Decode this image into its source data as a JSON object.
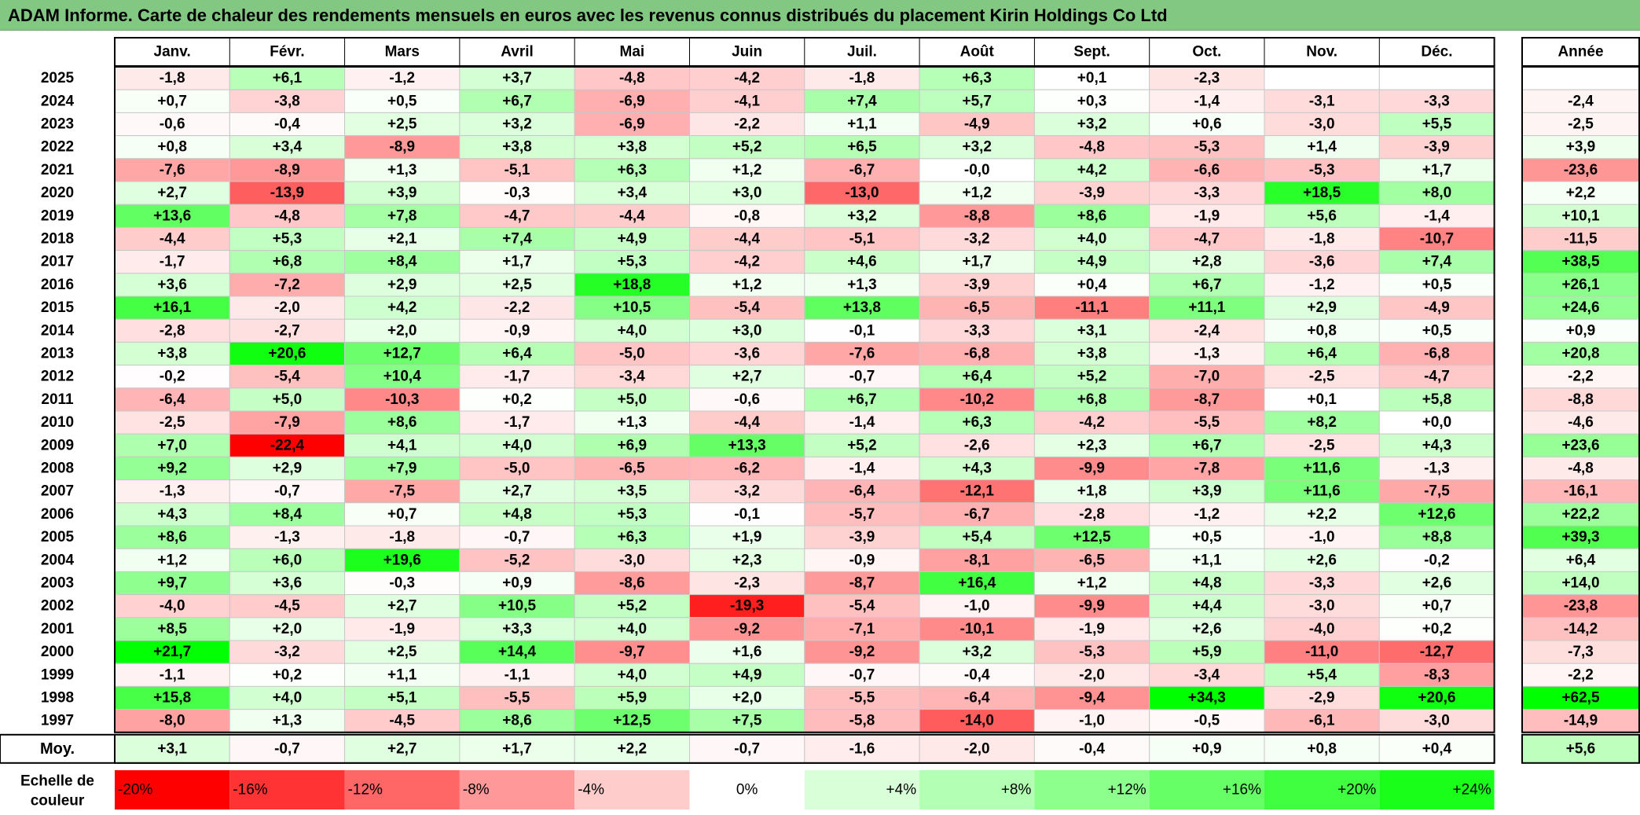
{
  "title": "ADAM Informe. Carte de chaleur des rendements mensuels en euros avec les revenus connus distribués du placement Kirin Holdings Co Ltd",
  "chart_data": {
    "type": "heatmap",
    "title": "ADAM Informe. Carte de chaleur des rendements mensuels en euros avec les revenus connus distribués du placement Kirin Holdings Co Ltd",
    "months": [
      "Janv.",
      "Févr.",
      "Mars",
      "Avril",
      "Mai",
      "Juin",
      "Juil.",
      "Août",
      "Sept.",
      "Oct.",
      "Nov.",
      "Déc."
    ],
    "annual_header": "Année",
    "rows": [
      {
        "year": "2025",
        "values": [
          "-1,8",
          "+6,1",
          "-1,2",
          "+3,7",
          "-4,8",
          "-4,2",
          "-1,8",
          "+6,3",
          "+0,1",
          "-2,3",
          "",
          ""
        ],
        "annual": ""
      },
      {
        "year": "2024",
        "values": [
          "+0,7",
          "-3,8",
          "+0,5",
          "+6,7",
          "-6,9",
          "-4,1",
          "+7,4",
          "+5,7",
          "+0,3",
          "-1,4",
          "-3,1",
          "-3,3"
        ],
        "annual": "-2,4"
      },
      {
        "year": "2023",
        "values": [
          "-0,6",
          "-0,4",
          "+2,5",
          "+3,2",
          "-6,9",
          "-2,2",
          "+1,1",
          "-4,9",
          "+3,2",
          "+0,6",
          "-3,0",
          "+5,5"
        ],
        "annual": "-2,5"
      },
      {
        "year": "2022",
        "values": [
          "+0,8",
          "+3,4",
          "-8,9",
          "+3,8",
          "+3,8",
          "+5,2",
          "+6,5",
          "+3,2",
          "-4,8",
          "-5,3",
          "+1,4",
          "-3,9"
        ],
        "annual": "+3,9"
      },
      {
        "year": "2021",
        "values": [
          "-7,6",
          "-8,9",
          "+1,3",
          "-5,1",
          "+6,3",
          "+1,2",
          "-6,7",
          "-0,0",
          "+4,2",
          "-6,6",
          "-5,3",
          "+1,7"
        ],
        "annual": "-23,6"
      },
      {
        "year": "2020",
        "values": [
          "+2,7",
          "-13,9",
          "+3,9",
          "-0,3",
          "+3,4",
          "+3,0",
          "-13,0",
          "+1,2",
          "-3,9",
          "-3,3",
          "+18,5",
          "+8,0"
        ],
        "annual": "+2,2"
      },
      {
        "year": "2019",
        "values": [
          "+13,6",
          "-4,8",
          "+7,8",
          "-4,7",
          "-4,4",
          "-0,8",
          "+3,2",
          "-8,8",
          "+8,6",
          "-1,9",
          "+5,6",
          "-1,4"
        ],
        "annual": "+10,1"
      },
      {
        "year": "2018",
        "values": [
          "-4,4",
          "+5,3",
          "+2,1",
          "+7,4",
          "+4,9",
          "-4,4",
          "-5,1",
          "-3,2",
          "+4,0",
          "-4,7",
          "-1,8",
          "-10,7"
        ],
        "annual": "-11,5"
      },
      {
        "year": "2017",
        "values": [
          "-1,7",
          "+6,8",
          "+8,4",
          "+1,7",
          "+5,3",
          "-4,2",
          "+4,6",
          "+1,7",
          "+4,9",
          "+2,8",
          "-3,6",
          "+7,4"
        ],
        "annual": "+38,5"
      },
      {
        "year": "2016",
        "values": [
          "+3,6",
          "-7,2",
          "+2,9",
          "+2,5",
          "+18,8",
          "+1,2",
          "+1,3",
          "-3,9",
          "+0,4",
          "+6,7",
          "-1,2",
          "+0,5"
        ],
        "annual": "+26,1"
      },
      {
        "year": "2015",
        "values": [
          "+16,1",
          "-2,0",
          "+4,2",
          "-2,2",
          "+10,5",
          "-5,4",
          "+13,8",
          "-6,5",
          "-11,1",
          "+11,1",
          "+2,9",
          "-4,9"
        ],
        "annual": "+24,6"
      },
      {
        "year": "2014",
        "values": [
          "-2,8",
          "-2,7",
          "+2,0",
          "-0,9",
          "+4,0",
          "+3,0",
          "-0,1",
          "-3,3",
          "+3,1",
          "-2,4",
          "+0,8",
          "+0,5"
        ],
        "annual": "+0,9"
      },
      {
        "year": "2013",
        "values": [
          "+3,8",
          "+20,6",
          "+12,7",
          "+6,4",
          "-5,0",
          "-3,6",
          "-7,6",
          "-6,8",
          "+3,8",
          "-1,3",
          "+6,4",
          "-6,8"
        ],
        "annual": "+20,8"
      },
      {
        "year": "2012",
        "values": [
          "-0,2",
          "-5,4",
          "+10,4",
          "-1,7",
          "-3,4",
          "+2,7",
          "-0,7",
          "+6,4",
          "+5,2",
          "-7,0",
          "-2,5",
          "-4,7"
        ],
        "annual": "-2,2"
      },
      {
        "year": "2011",
        "values": [
          "-6,4",
          "+5,0",
          "-10,3",
          "+0,2",
          "+5,0",
          "-0,6",
          "+6,7",
          "-10,2",
          "+6,8",
          "-8,7",
          "+0,1",
          "+5,8"
        ],
        "annual": "-8,8"
      },
      {
        "year": "2010",
        "values": [
          "-2,5",
          "-7,9",
          "+8,6",
          "-1,7",
          "+1,3",
          "-4,4",
          "-1,4",
          "+6,3",
          "-4,2",
          "-5,5",
          "+8,2",
          "+0,0"
        ],
        "annual": "-4,6"
      },
      {
        "year": "2009",
        "values": [
          "+7,0",
          "-22,4",
          "+4,1",
          "+4,0",
          "+6,9",
          "+13,3",
          "+5,2",
          "-2,6",
          "+2,3",
          "+6,7",
          "-2,5",
          "+4,3"
        ],
        "annual": "+23,6"
      },
      {
        "year": "2008",
        "values": [
          "+9,2",
          "+2,9",
          "+7,9",
          "-5,0",
          "-6,5",
          "-6,2",
          "-1,4",
          "+4,3",
          "-9,9",
          "-7,8",
          "+11,6",
          "-1,3"
        ],
        "annual": "-4,8"
      },
      {
        "year": "2007",
        "values": [
          "-1,3",
          "-0,7",
          "-7,5",
          "+2,7",
          "+3,5",
          "-3,2",
          "-6,4",
          "-12,1",
          "+1,8",
          "+3,9",
          "+11,6",
          "-7,5"
        ],
        "annual": "-16,1"
      },
      {
        "year": "2006",
        "values": [
          "+4,3",
          "+8,4",
          "+0,7",
          "+4,8",
          "+5,3",
          "-0,1",
          "-5,7",
          "-6,7",
          "-2,8",
          "-1,2",
          "+2,2",
          "+12,6"
        ],
        "annual": "+22,2"
      },
      {
        "year": "2005",
        "values": [
          "+8,6",
          "-1,3",
          "-1,8",
          "-0,7",
          "+6,3",
          "+1,9",
          "-3,9",
          "+5,4",
          "+12,5",
          "+0,5",
          "-1,0",
          "+8,8"
        ],
        "annual": "+39,3"
      },
      {
        "year": "2004",
        "values": [
          "+1,2",
          "+6,0",
          "+19,6",
          "-5,2",
          "-3,0",
          "+2,3",
          "-0,9",
          "-8,1",
          "-6,5",
          "+1,1",
          "+2,6",
          "-0,2"
        ],
        "annual": "+6,4"
      },
      {
        "year": "2003",
        "values": [
          "+9,7",
          "+3,6",
          "-0,3",
          "+0,9",
          "-8,6",
          "-2,3",
          "-8,7",
          "+16,4",
          "+1,2",
          "+4,8",
          "-3,3",
          "+2,6"
        ],
        "annual": "+14,0"
      },
      {
        "year": "2002",
        "values": [
          "-4,0",
          "-4,5",
          "+2,7",
          "+10,5",
          "+5,2",
          "-19,3",
          "-5,4",
          "-1,0",
          "-9,9",
          "+4,4",
          "-3,0",
          "+0,7"
        ],
        "annual": "-23,8"
      },
      {
        "year": "2001",
        "values": [
          "+8,5",
          "+2,0",
          "-1,9",
          "+3,3",
          "+4,0",
          "-9,2",
          "-7,1",
          "-10,1",
          "-1,9",
          "+2,6",
          "-4,0",
          "+0,2"
        ],
        "annual": "-14,2"
      },
      {
        "year": "2000",
        "values": [
          "+21,7",
          "-3,2",
          "+2,5",
          "+14,4",
          "-9,7",
          "+1,6",
          "-9,2",
          "+3,2",
          "-5,3",
          "+5,9",
          "-11,0",
          "-12,7"
        ],
        "annual": "-7,3"
      },
      {
        "year": "1999",
        "values": [
          "-1,1",
          "+0,2",
          "+1,1",
          "-1,1",
          "+4,0",
          "+4,9",
          "-0,7",
          "-0,4",
          "-2,0",
          "-3,4",
          "+5,4",
          "-8,3"
        ],
        "annual": "-2,2"
      },
      {
        "year": "1998",
        "values": [
          "+15,8",
          "+4,0",
          "+5,1",
          "-5,5",
          "+5,9",
          "+2,0",
          "-5,5",
          "-6,4",
          "-9,4",
          "+34,3",
          "-2,9",
          "+20,6"
        ],
        "annual": "+62,5"
      },
      {
        "year": "1997",
        "values": [
          "-8,0",
          "+1,3",
          "-4,5",
          "+8,6",
          "+12,5",
          "+7,5",
          "-5,8",
          "-14,0",
          "-1,0",
          "-0,5",
          "-6,1",
          "-3,0"
        ],
        "annual": "-14,9"
      }
    ],
    "average": {
      "label": "Moy.",
      "values": [
        "+3,1",
        "-0,7",
        "+2,7",
        "+1,7",
        "+2,2",
        "-0,7",
        "-1,6",
        "-2,0",
        "-0,4",
        "+0,9",
        "+0,8",
        "+0,4"
      ],
      "annual": "+5,6"
    },
    "scale": {
      "label_line1": "Echelle de",
      "label_line2": "couleur",
      "steps": [
        {
          "label": "-20%",
          "value": -20,
          "color": "#ff0000"
        },
        {
          "label": "-16%",
          "value": -16,
          "color": "#ff3333"
        },
        {
          "label": "-12%",
          "value": -12,
          "color": "#ff6666"
        },
        {
          "label": "-8%",
          "value": -8,
          "color": "#ff9999"
        },
        {
          "label": "-4%",
          "value": -4,
          "color": "#ffcccc"
        },
        {
          "label": "0%",
          "value": 0,
          "color": "#ffffff"
        },
        {
          "label": "+4%",
          "value": 4,
          "color": "#d9ffd9"
        },
        {
          "label": "+8%",
          "value": 8,
          "color": "#b3ffb3"
        },
        {
          "label": "+12%",
          "value": 12,
          "color": "#8cff8c"
        },
        {
          "label": "+16%",
          "value": 16,
          "color": "#66ff66"
        },
        {
          "label": "+20%",
          "value": 20,
          "color": "#40ff40"
        },
        {
          "label": "+24%",
          "value": 24,
          "color": "#1aff1a"
        }
      ]
    },
    "colors": {
      "negative_extreme": "#ff0000",
      "neutral": "#ffffff",
      "positive_extreme": "#00ff00",
      "title_bar": "#82c882"
    }
  }
}
